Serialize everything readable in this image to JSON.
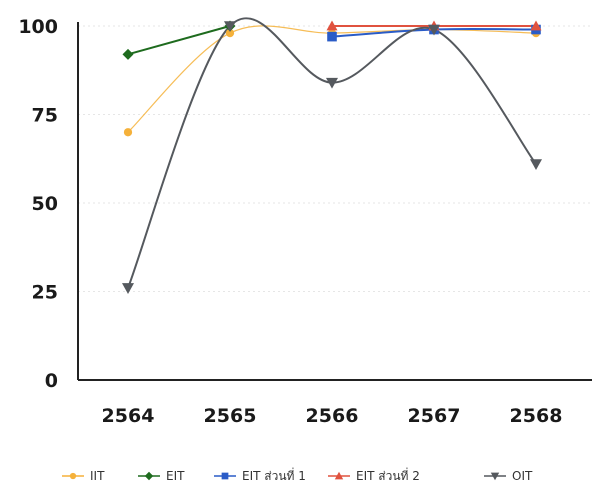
{
  "chart_data": {
    "type": "line",
    "categories": [
      "2564",
      "2565",
      "2566",
      "2567",
      "2568"
    ],
    "ylim": [
      0,
      100
    ],
    "yticks": [
      0,
      25,
      50,
      75,
      100
    ],
    "grid": true,
    "legend_position": "bottom",
    "series": [
      {
        "name": "IIT",
        "values": [
          70,
          98,
          98,
          99,
          98
        ],
        "color": "#F5B13A",
        "marker": "circle",
        "smooth": true
      },
      {
        "name": "EIT",
        "values": [
          92,
          100,
          null,
          null,
          null
        ],
        "color": "#1E6B1E",
        "marker": "diamond",
        "smooth": false
      },
      {
        "name": "EIT ส่วนที่ 1",
        "values": [
          null,
          null,
          97,
          99,
          99
        ],
        "color": "#2A5CC7",
        "marker": "square",
        "smooth": true
      },
      {
        "name": "EIT ส่วนที่ 2",
        "values": [
          null,
          null,
          100,
          100,
          100
        ],
        "color": "#E0523F",
        "marker": "triangle",
        "smooth": true
      },
      {
        "name": "OIT",
        "values": [
          26,
          100,
          84,
          99,
          61
        ],
        "color": "#55595E",
        "marker": "triangle-down",
        "smooth": true
      }
    ]
  }
}
